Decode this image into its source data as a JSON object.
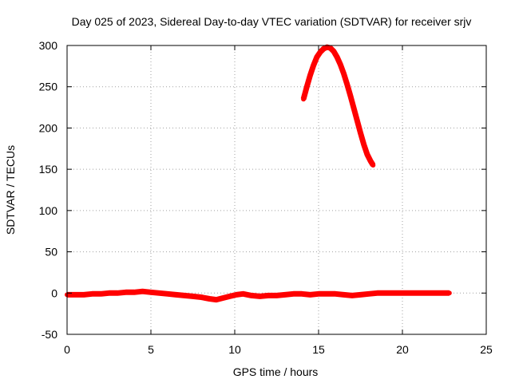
{
  "chart_data": {
    "type": "line",
    "title": "Day 025 of 2023, Sidereal Day-to-day VTEC variation (SDTVAR) for receiver srjv",
    "xlabel": "GPS time / hours",
    "ylabel": "SDTVAR / TECUs",
    "xlim": [
      0,
      25
    ],
    "ylim": [
      -50,
      300
    ],
    "x_ticks": [
      0,
      5,
      10,
      15,
      20,
      25
    ],
    "y_ticks": [
      -50,
      0,
      50,
      100,
      150,
      200,
      250,
      300
    ],
    "x_tick_labels": [
      "0",
      "5",
      "10",
      "15",
      "20",
      "25"
    ],
    "y_tick_labels": [
      "-50",
      "0",
      "50",
      "100",
      "150",
      "200",
      "250",
      "300"
    ],
    "grid": true,
    "legend": "none",
    "series": [
      {
        "color": "#ff0000",
        "x": [
          0,
          0.5,
          1,
          1.5,
          2,
          2.5,
          3,
          3.5,
          4,
          4.5,
          5,
          5.5,
          6,
          6.5,
          7,
          7.5,
          8,
          8.5,
          8.9,
          9.3,
          9.7,
          10.1,
          10.5,
          11,
          11.5,
          12,
          12.5,
          13,
          13.5,
          14,
          14.5,
          15,
          15.5,
          16,
          16.5,
          17,
          17.5,
          18,
          18.5,
          19,
          19.5,
          20,
          20.5,
          21,
          21.5,
          22,
          22.5,
          22.8
        ],
        "y": [
          -2,
          -2,
          -2,
          -1,
          -1,
          0,
          0,
          1,
          1,
          2,
          1,
          0,
          -1,
          -2,
          -3,
          -4,
          -5,
          -7,
          -8,
          -6,
          -4,
          -2,
          -1,
          -3,
          -4,
          -3,
          -3,
          -2,
          -1,
          -1,
          -2,
          -1,
          -1,
          -1,
          -2,
          -3,
          -2,
          -1,
          0,
          0,
          0,
          0,
          0,
          0,
          0,
          0,
          0,
          0
        ]
      },
      {
        "color": "#ff0000",
        "x": [
          14.1,
          14.3,
          14.5,
          14.7,
          14.9,
          15.1,
          15.3,
          15.5,
          15.7,
          15.9,
          16.1,
          16.3,
          16.5,
          16.7,
          16.9,
          17.1,
          17.3,
          17.5,
          17.7,
          17.9,
          18.1,
          18.25
        ],
        "y": [
          235,
          250,
          264,
          276,
          286,
          292,
          296,
          298,
          297,
          293,
          286,
          277,
          266,
          253,
          239,
          224,
          209,
          194,
          180,
          168,
          160,
          155
        ]
      }
    ]
  }
}
